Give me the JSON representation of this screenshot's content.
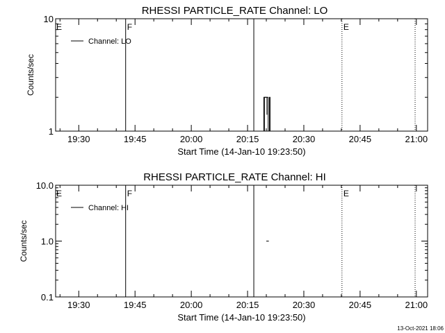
{
  "footer_timestamp": "13-Oct-2021 18:06",
  "chart_data": [
    {
      "type": "line",
      "title": "RHESSI PARTICLE_RATE Channel: LO",
      "xlabel": "Start Time (14-Jan-10 19:23:50)",
      "ylabel": "Counts/sec",
      "yscale": "log",
      "xlim": [
        "19:23:50",
        "21:03:00"
      ],
      "ylim": [
        1,
        10
      ],
      "xticks": [
        "19:30",
        "19:45",
        "20:00",
        "20:15",
        "20:30",
        "20:45",
        "21:00"
      ],
      "yticks": [
        {
          "value": 1,
          "label": "1"
        },
        {
          "value": 10,
          "label": "10"
        }
      ],
      "legend": {
        "position": "top-left",
        "label": "Channel: LO"
      },
      "series": [
        {
          "name": "Channel: LO",
          "points": [
            [
              "20:19:00",
              1
            ],
            [
              "20:19:30",
              2
            ],
            [
              "20:20:00",
              2
            ],
            [
              "20:20:30",
              1
            ],
            [
              "20:20:50",
              2
            ],
            [
              "20:21:00",
              1
            ]
          ]
        }
      ],
      "event_lines": [
        {
          "time": "19:23:50",
          "label": "E",
          "style": "solid"
        },
        {
          "time": "19:42:30",
          "label": "F",
          "style": "solid"
        },
        {
          "time": "20:16:40",
          "label": "",
          "style": "solid"
        },
        {
          "time": "20:40:10",
          "label": "E",
          "style": "dotted"
        },
        {
          "time": "20:59:40",
          "label": "",
          "style": "dotted"
        }
      ]
    },
    {
      "type": "line",
      "title": "RHESSI PARTICLE_RATE Channel: HI",
      "xlabel": "Start Time (14-Jan-10 19:23:50)",
      "ylabel": "Counts/sec",
      "yscale": "log",
      "xlim": [
        "19:23:50",
        "21:03:00"
      ],
      "ylim": [
        0.1,
        10
      ],
      "xticks": [
        "19:30",
        "19:45",
        "20:00",
        "20:15",
        "20:30",
        "20:45",
        "21:00"
      ],
      "yticks": [
        {
          "value": 0.1,
          "label": "0.1"
        },
        {
          "value": 1,
          "label": "1.0"
        },
        {
          "value": 10,
          "label": "10.0"
        }
      ],
      "legend": {
        "position": "top-left",
        "label": "Channel: HI"
      },
      "series": [
        {
          "name": "Channel: HI",
          "points": [
            [
              "20:20:00",
              1
            ],
            [
              "20:20:40",
              1
            ]
          ],
          "points_right": [
            [
              "21:01:30",
              1
            ],
            [
              "21:02:50",
              1
            ]
          ]
        }
      ],
      "event_lines": [
        {
          "time": "19:23:50",
          "label": "E",
          "style": "solid"
        },
        {
          "time": "19:42:30",
          "label": "F",
          "style": "solid"
        },
        {
          "time": "20:16:40",
          "label": "",
          "style": "solid"
        },
        {
          "time": "20:40:10",
          "label": "E",
          "style": "dotted"
        },
        {
          "time": "20:59:40",
          "label": "",
          "style": "dotted"
        }
      ]
    }
  ]
}
